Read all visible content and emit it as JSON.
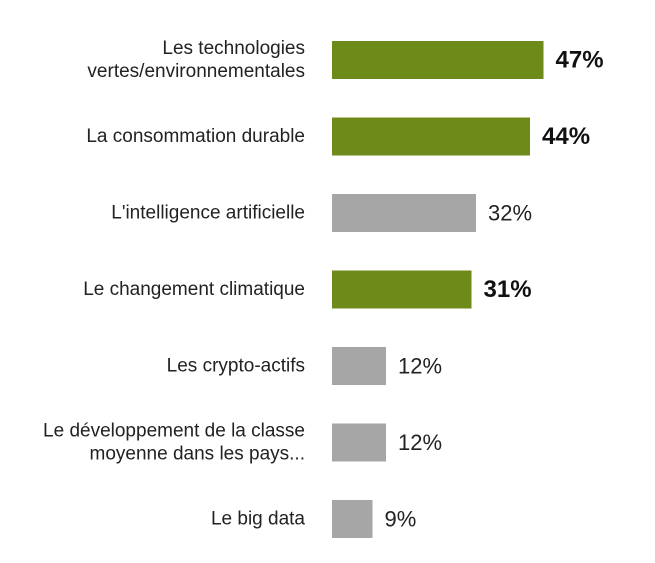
{
  "chart_data": {
    "type": "bar",
    "orientation": "horizontal",
    "categories": [
      [
        "Les technologies",
        "vertes/environnementales"
      ],
      [
        "La consommation durable"
      ],
      [
        "L'intelligence artificielle"
      ],
      [
        "Le changement climatique"
      ],
      [
        "Les crypto-actifs"
      ],
      [
        "Le développement de la classe",
        "moyenne dans les pays..."
      ],
      [
        "Le big data"
      ]
    ],
    "values": [
      47,
      44,
      32,
      31,
      12,
      12,
      9
    ],
    "value_labels": [
      "47%",
      "44%",
      "32%",
      "31%",
      "12%",
      "12%",
      "9%"
    ],
    "highlighted": [
      true,
      true,
      false,
      true,
      false,
      false,
      false
    ],
    "xlim": [
      0,
      50
    ],
    "grid": false,
    "legend": "none",
    "colors": {
      "highlight": "#6e8b1a",
      "default": "#a6a6a6"
    }
  }
}
